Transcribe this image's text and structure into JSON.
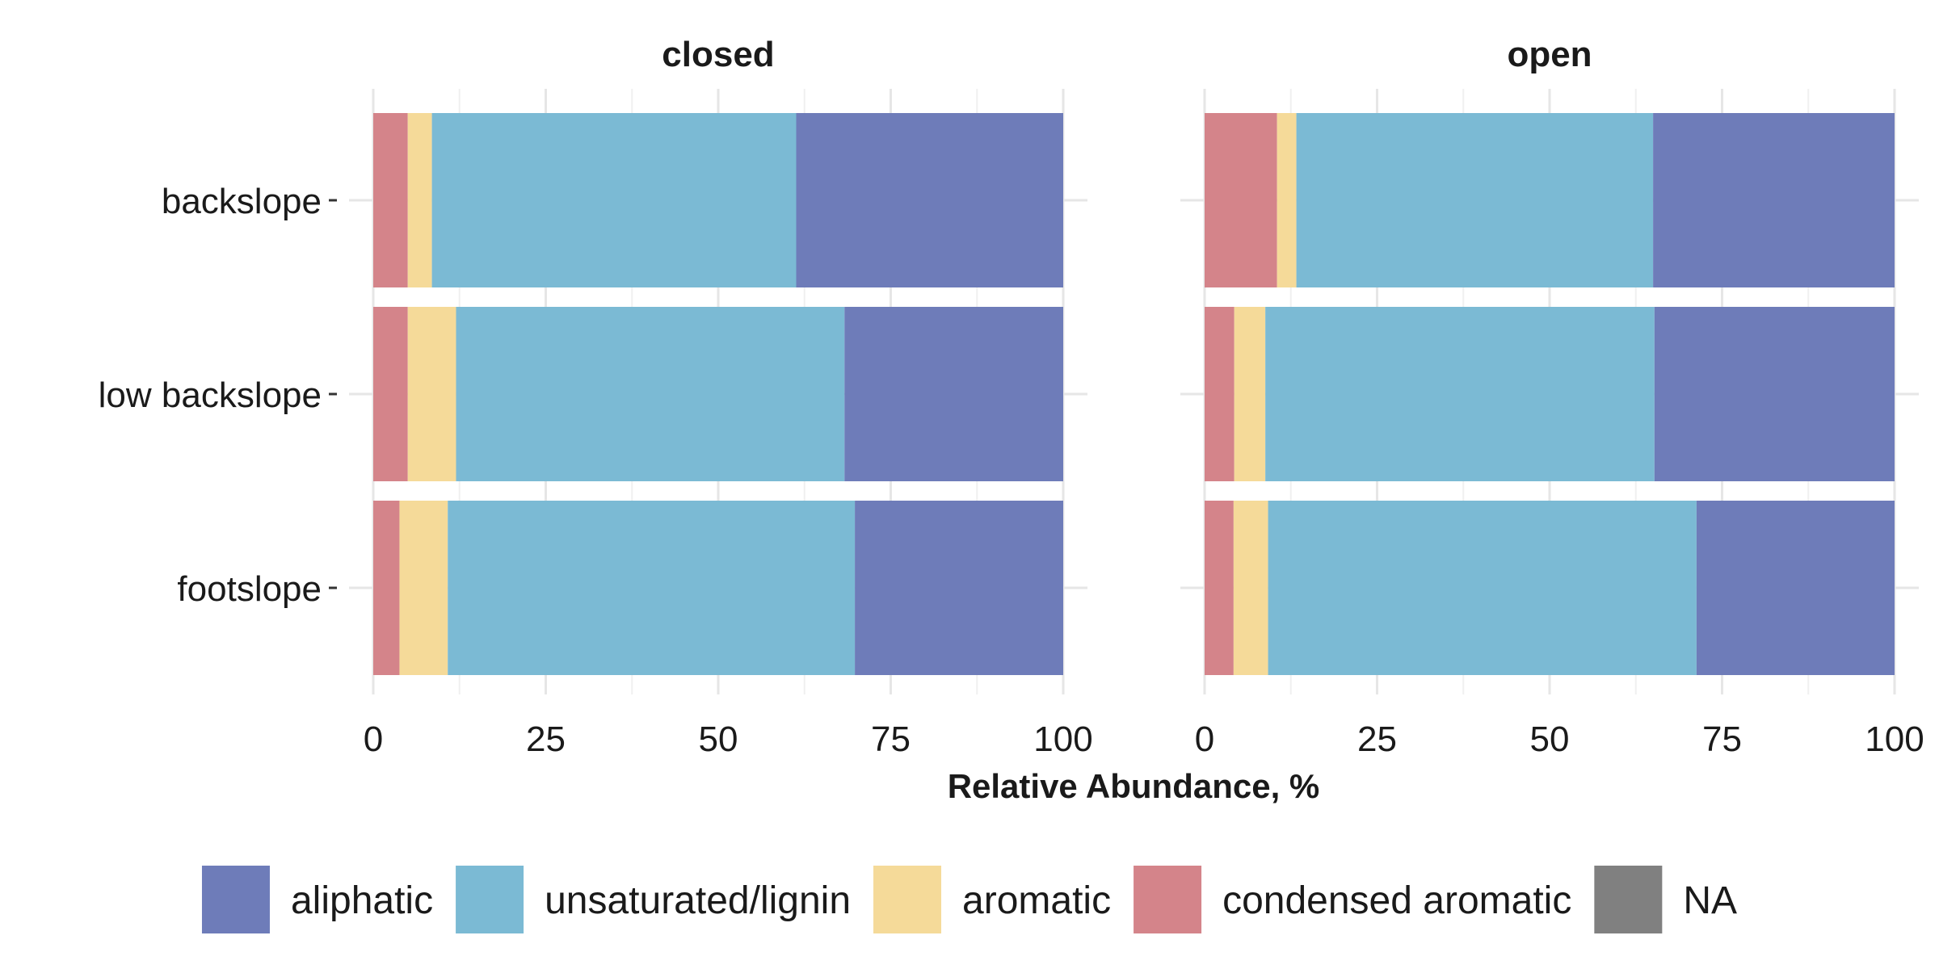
{
  "chart_data": {
    "type": "bar",
    "orientation": "horizontal",
    "stacked": true,
    "facets": [
      "closed",
      "open"
    ],
    "categories": [
      "backslope",
      "low backslope",
      "footslope"
    ],
    "xlabel": "Relative Abundance, %",
    "xlim": [
      0,
      100
    ],
    "xticks": [
      "0",
      "25",
      "50",
      "75",
      "100"
    ],
    "grid": true,
    "legend_position": "bottom",
    "series": [
      {
        "name": "condensed aromatic",
        "color": "#d4848a",
        "values": {
          "closed": [
            5.0,
            5.0,
            3.8
          ],
          "open": [
            10.5,
            4.3,
            4.2
          ]
        }
      },
      {
        "name": "aromatic",
        "color": "#f5da99",
        "values": {
          "closed": [
            3.5,
            7.0,
            7.0
          ],
          "open": [
            2.8,
            4.5,
            5.0
          ]
        }
      },
      {
        "name": "unsaturated/lignin",
        "color": "#7bbad4",
        "values": {
          "closed": [
            52.8,
            56.3,
            59.0
          ],
          "open": [
            51.7,
            56.4,
            62.1
          ]
        }
      },
      {
        "name": "aliphatic",
        "color": "#6e7cb9",
        "values": {
          "closed": [
            38.7,
            31.7,
            30.2
          ],
          "open": [
            35.0,
            34.8,
            28.7
          ]
        }
      }
    ],
    "legend": [
      {
        "name": "aliphatic",
        "color": "#6e7cb9"
      },
      {
        "name": "unsaturated/lignin",
        "color": "#7bbad4"
      },
      {
        "name": "aromatic",
        "color": "#f5da99"
      },
      {
        "name": "condensed aromatic",
        "color": "#d4848a"
      },
      {
        "name": "NA",
        "color": "#808080"
      }
    ]
  }
}
